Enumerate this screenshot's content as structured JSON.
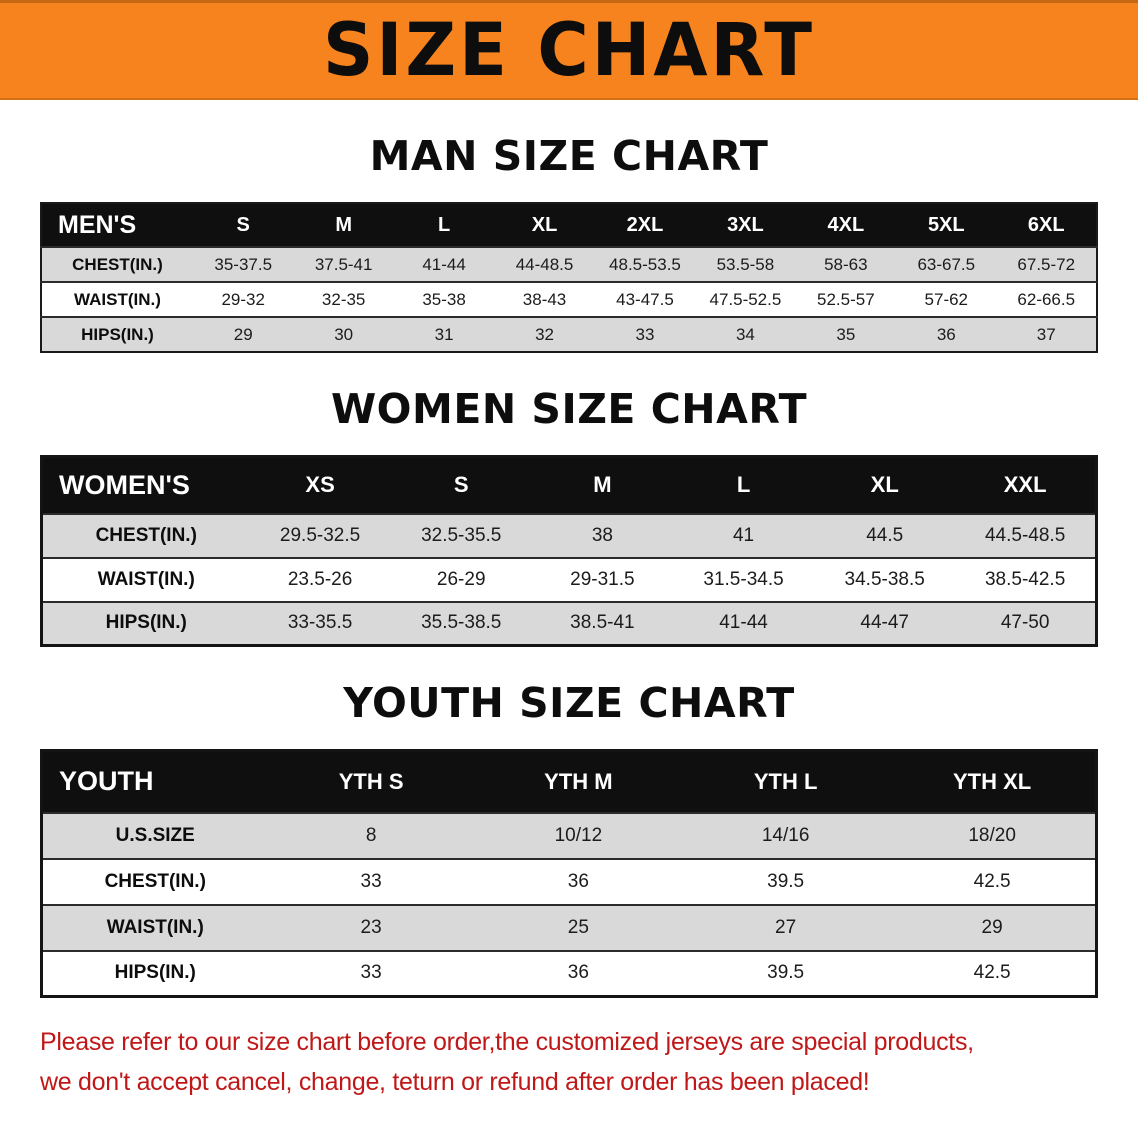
{
  "banner": {
    "title": "SIZE CHART"
  },
  "colors": {
    "banner-bg": "#f6831d",
    "table-header-bg": "#0f0f0f",
    "row-shade": "#d9d9d9",
    "disclaimer-red": "#c01818"
  },
  "sections": [
    {
      "id": "men",
      "heading": "MAN SIZE CHART",
      "table": {
        "header": [
          "MEN'S",
          "S",
          "M",
          "L",
          "XL",
          "2XL",
          "3XL",
          "4XL",
          "5XL",
          "6XL"
        ],
        "rows": [
          [
            "CHEST(IN.)",
            "35-37.5",
            "37.5-41",
            "41-44",
            "44-48.5",
            "48.5-53.5",
            "53.5-58",
            "58-63",
            "63-67.5",
            "67.5-72"
          ],
          [
            "WAIST(IN.)",
            "29-32",
            "32-35",
            "35-38",
            "38-43",
            "43-47.5",
            "47.5-52.5",
            "52.5-57",
            "57-62",
            "62-66.5"
          ],
          [
            "HIPS(IN.)",
            "29",
            "30",
            "31",
            "32",
            "33",
            "34",
            "35",
            "36",
            "37"
          ]
        ]
      }
    },
    {
      "id": "women",
      "heading": "WOMEN SIZE CHART",
      "table": {
        "header": [
          "WOMEN'S",
          "XS",
          "S",
          "M",
          "L",
          "XL",
          "XXL"
        ],
        "rows": [
          [
            "CHEST(IN.)",
            "29.5-32.5",
            "32.5-35.5",
            "38",
            "41",
            "44.5",
            "44.5-48.5"
          ],
          [
            "WAIST(IN.)",
            "23.5-26",
            "26-29",
            "29-31.5",
            "31.5-34.5",
            "34.5-38.5",
            "38.5-42.5"
          ],
          [
            "HIPS(IN.)",
            "33-35.5",
            "35.5-38.5",
            "38.5-41",
            "41-44",
            "44-47",
            "47-50"
          ]
        ]
      }
    },
    {
      "id": "youth",
      "heading": "YOUTH SIZE CHART",
      "table": {
        "header": [
          "YOUTH",
          "YTH S",
          "YTH M",
          "YTH L",
          "YTH XL"
        ],
        "rows": [
          [
            "U.S.SIZE",
            "8",
            "10/12",
            "14/16",
            "18/20"
          ],
          [
            "CHEST(IN.)",
            "33",
            "36",
            "39.5",
            "42.5"
          ],
          [
            "WAIST(IN.)",
            "23",
            "25",
            "27",
            "29"
          ],
          [
            "HIPS(IN.)",
            "33",
            "36",
            "39.5",
            "42.5"
          ]
        ]
      }
    }
  ],
  "disclaimer": {
    "line1": "Please refer to our size chart before order,the customized jerseys are special products,",
    "line2": "we don't accept cancel, change, teturn or refund after order has been placed!"
  }
}
